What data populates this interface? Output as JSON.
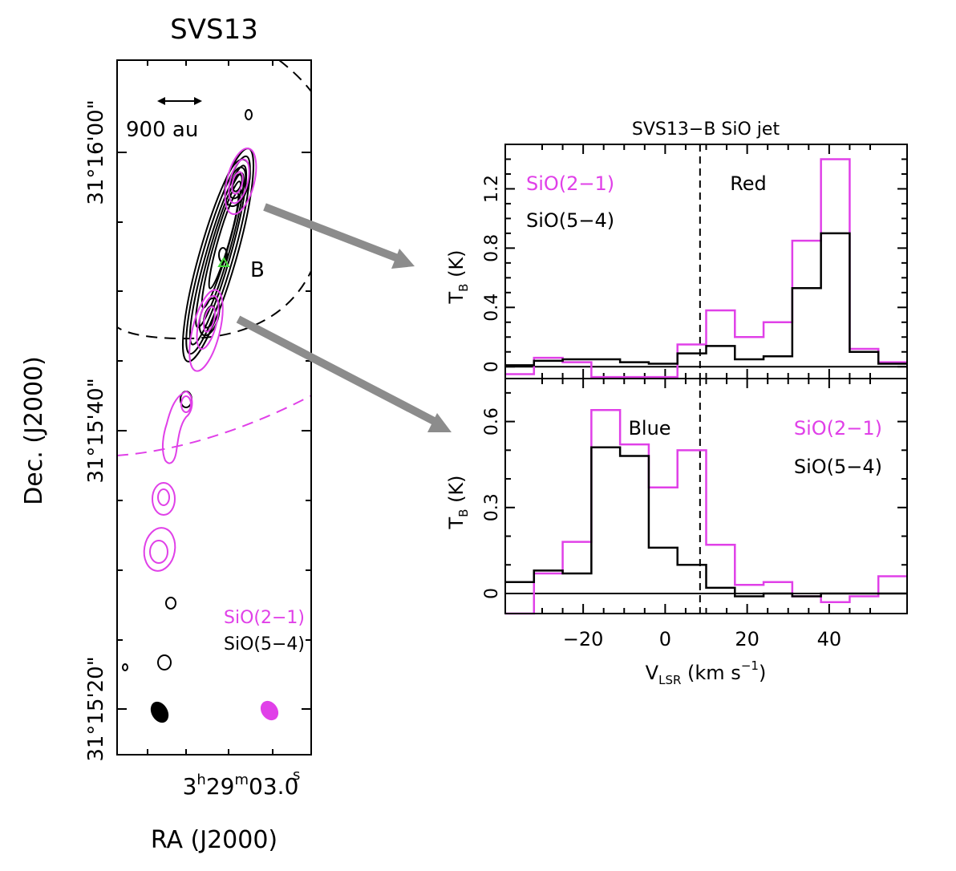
{
  "map": {
    "title": "SVS13",
    "scale_label": "900 au",
    "source_label": "B",
    "ylabel": "Dec. (J2000)",
    "xlabel": "RA (J2000)",
    "dec_ticks": [
      {
        "label": "31°16'00\"",
        "dec_arcsec": 60
      },
      {
        "label": "31°15'40\"",
        "dec_arcsec": 40
      },
      {
        "label": "31°15'20\"",
        "dec_arcsec": 20
      }
    ],
    "ra_tick": {
      "h": "3",
      "m": "29",
      "s": "03",
      "frac": ".0"
    },
    "legend": [
      {
        "name": "SiO(2−1)",
        "color": "#e040e8"
      },
      {
        "name": "SiO(5−4)",
        "color": "#000000"
      }
    ]
  },
  "colors": {
    "sio21": "#e040e8",
    "sio54": "#000000",
    "arrow": "#8c8c8c",
    "source_marker": "#44d93a"
  },
  "chart_data": [
    {
      "type": "line",
      "panel": "top",
      "title": "SVS13−B SiO jet",
      "label": "Red",
      "xlabel": "V_LSR (km s−1)",
      "ylabel": "T_B (K)",
      "xlim": [
        -39,
        59
      ],
      "ylim": [
        -0.08,
        1.5
      ],
      "yticks": [
        0,
        0.4,
        0.8,
        1.2
      ],
      "ytick_labels": [
        "0",
        "0.4",
        "0.8",
        "1.2"
      ],
      "vsys": 8.5,
      "bin_edges": [
        -39,
        -32,
        -25,
        -18,
        -11,
        -4,
        3,
        10,
        17,
        24,
        31,
        38,
        45,
        52,
        59
      ],
      "series": [
        {
          "name": "SiO(2−1)",
          "color": "#e040e8",
          "values": [
            -0.05,
            0.06,
            0.03,
            -0.07,
            -0.07,
            -0.07,
            0.15,
            0.38,
            0.2,
            0.3,
            0.85,
            1.4,
            0.12,
            0.03
          ]
        },
        {
          "name": "SiO(5−4)",
          "color": "#000000",
          "values": [
            0.01,
            0.04,
            0.05,
            0.05,
            0.03,
            0.02,
            0.09,
            0.14,
            0.05,
            0.07,
            0.53,
            0.9,
            0.1,
            0.02
          ]
        }
      ]
    },
    {
      "type": "line",
      "panel": "bottom",
      "label": "Blue",
      "xlabel": "V_LSR (km s−1)",
      "ylabel": "T_B (K)",
      "xlim": [
        -39,
        59
      ],
      "ylim": [
        -0.07,
        0.75
      ],
      "yticks": [
        0,
        0.3,
        0.6
      ],
      "ytick_labels": [
        "0",
        "0.3",
        "0.6"
      ],
      "xticks": [
        -20,
        0,
        20,
        40
      ],
      "xtick_labels": [
        "−20",
        "0",
        "20",
        "40"
      ],
      "vsys": 8.5,
      "bin_edges": [
        -39,
        -32,
        -25,
        -18,
        -11,
        -4,
        3,
        10,
        17,
        24,
        31,
        38,
        45,
        52,
        59
      ],
      "series": [
        {
          "name": "SiO(2−1)",
          "color": "#e040e8",
          "values": [
            -0.07,
            0.07,
            0.18,
            0.64,
            0.52,
            0.37,
            0.5,
            0.17,
            0.03,
            0.04,
            -0.01,
            -0.03,
            -0.01,
            0.06
          ]
        },
        {
          "name": "SiO(5−4)",
          "color": "#000000",
          "values": [
            0.04,
            0.08,
            0.07,
            0.51,
            0.48,
            0.16,
            0.1,
            0.02,
            -0.01,
            0.0,
            -0.01,
            0.0,
            0.0,
            0.0
          ]
        }
      ]
    }
  ]
}
